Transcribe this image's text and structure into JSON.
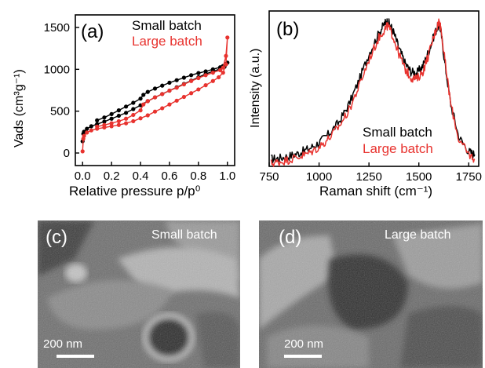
{
  "chart_data": [
    {
      "panel": "(a)",
      "type": "line",
      "xlabel": "Relative pressure p/p⁰",
      "ylabel": "Vads (cm³g⁻¹)",
      "xlim": [
        -0.05,
        1.05
      ],
      "ylim": [
        -150,
        1650
      ],
      "xticks": [
        "0.0",
        "0.2",
        "0.4",
        "0.6",
        "0.8",
        "1.0"
      ],
      "yticks": [
        "0",
        "500",
        "1000",
        "1500"
      ],
      "legend": "top-right",
      "series": [
        {
          "name": "Small batch",
          "color": "#000000",
          "points": [
            [
              0.0,
              140
            ],
            [
              0.005,
              230
            ],
            [
              0.01,
              255
            ],
            [
              0.03,
              290
            ],
            [
              0.06,
              320
            ],
            [
              0.1,
              345
            ],
            [
              0.15,
              375
            ],
            [
              0.2,
              410
            ],
            [
              0.25,
              445
            ],
            [
              0.3,
              480
            ],
            [
              0.35,
              525
            ],
            [
              0.4,
              570
            ],
            [
              0.45,
              620
            ],
            [
              0.5,
              665
            ],
            [
              0.55,
              705
            ],
            [
              0.6,
              745
            ],
            [
              0.65,
              785
            ],
            [
              0.7,
              825
            ],
            [
              0.75,
              865
            ],
            [
              0.8,
              905
            ],
            [
              0.85,
              945
            ],
            [
              0.9,
              975
            ],
            [
              0.95,
              1005
            ],
            [
              0.98,
              1030
            ],
            [
              0.99,
              1060
            ],
            [
              1.0,
              1080
            ],
            [
              0.99,
              1065
            ],
            [
              0.97,
              1040
            ],
            [
              0.95,
              1025
            ],
            [
              0.9,
              1000
            ],
            [
              0.85,
              975
            ],
            [
              0.8,
              955
            ],
            [
              0.75,
              930
            ],
            [
              0.7,
              900
            ],
            [
              0.65,
              870
            ],
            [
              0.6,
              840
            ],
            [
              0.55,
              805
            ],
            [
              0.5,
              770
            ],
            [
              0.45,
              730
            ],
            [
              0.42,
              695
            ],
            [
              0.4,
              650
            ],
            [
              0.35,
              600
            ],
            [
              0.3,
              555
            ],
            [
              0.25,
              510
            ],
            [
              0.2,
              465
            ],
            [
              0.15,
              425
            ],
            [
              0.1,
              390
            ]
          ]
        },
        {
          "name": "Large batch",
          "color": "#e8332f",
          "points": [
            [
              0.0,
              20
            ],
            [
              0.005,
              170
            ],
            [
              0.01,
              205
            ],
            [
              0.03,
              245
            ],
            [
              0.06,
              270
            ],
            [
              0.1,
              290
            ],
            [
              0.15,
              305
            ],
            [
              0.2,
              320
            ],
            [
              0.25,
              335
            ],
            [
              0.3,
              355
            ],
            [
              0.35,
              380
            ],
            [
              0.4,
              415
            ],
            [
              0.45,
              450
            ],
            [
              0.5,
              495
            ],
            [
              0.55,
              535
            ],
            [
              0.6,
              580
            ],
            [
              0.65,
              625
            ],
            [
              0.7,
              670
            ],
            [
              0.75,
              715
            ],
            [
              0.8,
              760
            ],
            [
              0.85,
              810
            ],
            [
              0.9,
              860
            ],
            [
              0.94,
              905
            ],
            [
              0.97,
              960
            ],
            [
              0.99,
              1060
            ],
            [
              1.0,
              1380
            ],
            [
              0.99,
              1160
            ],
            [
              0.97,
              1020
            ],
            [
              0.95,
              990
            ],
            [
              0.9,
              960
            ],
            [
              0.85,
              930
            ],
            [
              0.8,
              895
            ],
            [
              0.75,
              860
            ],
            [
              0.7,
              820
            ],
            [
              0.65,
              780
            ],
            [
              0.6,
              745
            ],
            [
              0.55,
              705
            ],
            [
              0.5,
              665
            ],
            [
              0.45,
              620
            ],
            [
              0.42,
              580
            ],
            [
              0.4,
              510
            ],
            [
              0.35,
              455
            ],
            [
              0.3,
              410
            ],
            [
              0.25,
              380
            ],
            [
              0.2,
              355
            ],
            [
              0.15,
              335
            ],
            [
              0.1,
              315
            ]
          ]
        }
      ]
    },
    {
      "panel": "(b)",
      "type": "line",
      "xlabel": "Raman shift (cm⁻¹)",
      "ylabel": "Intensity (a.u.)",
      "xlim": [
        750,
        1800
      ],
      "ylim": [
        0,
        1.05
      ],
      "xticks": [
        "750",
        "1000",
        "1250",
        "1500",
        "1750"
      ],
      "legend": "bottom-right",
      "series": [
        {
          "name": "Small batch",
          "color": "#000000",
          "points": [
            [
              760,
              0.05
            ],
            [
              800,
              0.055
            ],
            [
              850,
              0.07
            ],
            [
              900,
              0.09
            ],
            [
              950,
              0.12
            ],
            [
              1000,
              0.16
            ],
            [
              1050,
              0.22
            ],
            [
              1100,
              0.3
            ],
            [
              1150,
              0.42
            ],
            [
              1200,
              0.58
            ],
            [
              1250,
              0.76
            ],
            [
              1300,
              0.9
            ],
            [
              1330,
              0.97
            ],
            [
              1345,
              0.98
            ],
            [
              1370,
              0.92
            ],
            [
              1400,
              0.8
            ],
            [
              1430,
              0.7
            ],
            [
              1460,
              0.64
            ],
            [
              1490,
              0.63
            ],
            [
              1520,
              0.68
            ],
            [
              1550,
              0.78
            ],
            [
              1580,
              0.9
            ],
            [
              1600,
              0.96
            ],
            [
              1610,
              0.92
            ],
            [
              1630,
              0.7
            ],
            [
              1660,
              0.42
            ],
            [
              1700,
              0.2
            ],
            [
              1750,
              0.1
            ],
            [
              1780,
              0.08
            ]
          ]
        },
        {
          "name": "Large batch",
          "color": "#e8332f",
          "points": [
            [
              760,
              0.02
            ],
            [
              800,
              0.03
            ],
            [
              850,
              0.045
            ],
            [
              900,
              0.065
            ],
            [
              950,
              0.09
            ],
            [
              1000,
              0.13
            ],
            [
              1050,
              0.19
            ],
            [
              1100,
              0.27
            ],
            [
              1150,
              0.38
            ],
            [
              1200,
              0.54
            ],
            [
              1250,
              0.72
            ],
            [
              1300,
              0.87
            ],
            [
              1330,
              0.93
            ],
            [
              1345,
              0.95
            ],
            [
              1370,
              0.88
            ],
            [
              1400,
              0.76
            ],
            [
              1430,
              0.66
            ],
            [
              1460,
              0.6
            ],
            [
              1490,
              0.59
            ],
            [
              1520,
              0.64
            ],
            [
              1550,
              0.76
            ],
            [
              1580,
              0.9
            ],
            [
              1600,
              0.98
            ],
            [
              1610,
              0.94
            ],
            [
              1630,
              0.72
            ],
            [
              1660,
              0.42
            ],
            [
              1700,
              0.18
            ],
            [
              1750,
              0.08
            ],
            [
              1780,
              0.05
            ]
          ]
        }
      ]
    }
  ],
  "micrographs": [
    {
      "panel": "(c)",
      "label": "Small batch",
      "scale_bar": "200 nm"
    },
    {
      "panel": "(d)",
      "label": "Large batch",
      "scale_bar": "200 nm"
    }
  ]
}
